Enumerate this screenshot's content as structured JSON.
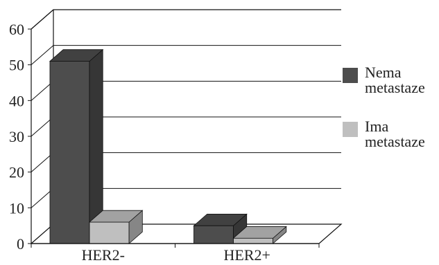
{
  "chart_data": {
    "type": "bar",
    "style": "3d-column",
    "categories": [
      "HER2-",
      "HER2+"
    ],
    "series": [
      {
        "name": "Nema metastaze",
        "values": [
          51,
          5
        ],
        "color": "#4d4d4d"
      },
      {
        "name": "Ima metastaze",
        "values": [
          6,
          1.5
        ],
        "color": "#bfbfbf"
      }
    ],
    "ylim": [
      0,
      60
    ],
    "yticks": [
      "0",
      "10",
      "20",
      "30",
      "40",
      "50",
      "60"
    ],
    "grid": true,
    "legend_position": "right",
    "legend": [
      {
        "lines": [
          "Nema",
          "metastaze"
        ],
        "color": "#4d4d4d"
      },
      {
        "lines": [
          "Ima",
          "metastaze"
        ],
        "color": "#bfbfbf"
      }
    ]
  }
}
